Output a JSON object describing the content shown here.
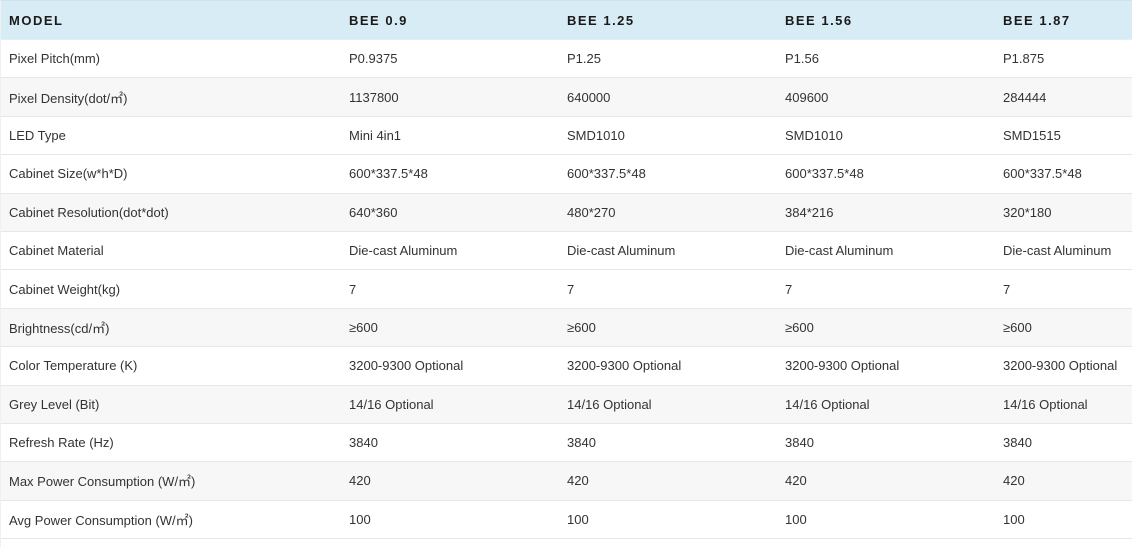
{
  "table": {
    "columns": [
      "MODEL",
      "BEE 0.9",
      "BEE 1.25",
      "BEE 1.56",
      "BEE 1.87"
    ],
    "rows": [
      {
        "label": "Pixel Pitch(mm)",
        "values": [
          "P0.9375",
          "P1.25",
          "P1.56",
          "P1.875"
        ]
      },
      {
        "label": "Pixel Density(dot/㎡)",
        "values": [
          "1137800",
          "640000",
          "409600",
          "284444"
        ]
      },
      {
        "label": "LED Type",
        "values": [
          "Mini 4in1",
          "SMD1010",
          "SMD1010",
          "SMD1515"
        ]
      },
      {
        "label": "Cabinet Size(w*h*D)",
        "values": [
          "600*337.5*48",
          "600*337.5*48",
          "600*337.5*48",
          "600*337.5*48"
        ]
      },
      {
        "label": "Cabinet Resolution(dot*dot)",
        "values": [
          "640*360",
          "480*270",
          "384*216",
          "320*180"
        ]
      },
      {
        "label": "Cabinet Material",
        "values": [
          "Die-cast Aluminum",
          "Die-cast Aluminum",
          "Die-cast Aluminum",
          "Die-cast Aluminum"
        ]
      },
      {
        "label": "Cabinet Weight(kg)",
        "values": [
          "7",
          "7",
          "7",
          "7"
        ]
      },
      {
        "label": "Brightness(cd/㎡)",
        "values": [
          "≥600",
          "≥600",
          "≥600",
          "≥600"
        ]
      },
      {
        "label": "Color Temperature (K)",
        "values": [
          "3200-9300 Optional",
          "3200-9300 Optional",
          "3200-9300 Optional",
          "3200-9300 Optional"
        ]
      },
      {
        "label": "Grey Level (Bit)",
        "values": [
          "14/16 Optional",
          "14/16 Optional",
          "14/16 Optional",
          "14/16 Optional"
        ]
      },
      {
        "label": "Refresh Rate (Hz)",
        "values": [
          "3840",
          "3840",
          "3840",
          "3840"
        ]
      },
      {
        "label": "Max Power Consumption (W/㎡)",
        "values": [
          "420",
          "420",
          "420",
          "420"
        ]
      },
      {
        "label": "Avg Power Consumption (W/㎡)",
        "values": [
          "100",
          "100",
          "100",
          "100"
        ]
      }
    ],
    "striped_rows": [
      2,
      5,
      8,
      10,
      12
    ],
    "colors": {
      "header_bg": "#d8ecf6",
      "stripe_bg": "#f7f7f7",
      "row_bg": "#ffffff",
      "border": "#e7e7e7",
      "header_text": "#1a1a1a",
      "cell_text": "#333333"
    }
  }
}
